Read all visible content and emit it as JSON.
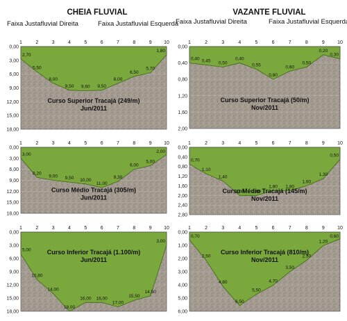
{
  "columns": [
    {
      "title": "CHEIA FLUVIAL",
      "left_bank": "Faixa Justafluvial Direita",
      "right_bank": "Faixa Justafluvial Esquerda"
    },
    {
      "title": "VAZANTE FLUVIAL",
      "left_bank": "Faixa Justafluvial Direita",
      "right_bank": "Faixa Justafluvial Esquerda"
    }
  ],
  "colors": {
    "water": "#7aa83c",
    "water_edge": "#3f6618",
    "sediment": "#a39a90",
    "grid": "#cfcfcf"
  },
  "chart_data": [
    {
      "type": "area",
      "column": 0,
      "row": 0,
      "x": [
        1,
        2,
        3,
        4,
        5,
        6,
        7,
        8,
        9,
        10
      ],
      "y": [
        2.7,
        5.5,
        8.0,
        9.5,
        9.6,
        9.5,
        8.0,
        6.5,
        5.7,
        1.8
      ],
      "point_labels": [
        "2,70",
        "5,50",
        "8,00",
        "9,50",
        "9,60",
        "9,50",
        "8,00",
        "6,50",
        "5,70",
        "1,80"
      ],
      "ylim": [
        0,
        18
      ],
      "y_ticks": [
        "0,00",
        "3,00",
        "6,00",
        "9,00",
        "12,00",
        "15,00",
        "18,00"
      ],
      "x_ticks": [
        "1",
        "2",
        "3",
        "4",
        "5",
        "6",
        "7",
        "8",
        "9",
        "10"
      ],
      "caption": [
        "Curso Superior Tracajá (249/m)",
        "Jun/2011"
      ]
    },
    {
      "type": "area",
      "column": 0,
      "row": 1,
      "x": [
        1,
        2,
        3,
        4,
        5,
        6,
        7,
        8,
        9,
        10
      ],
      "y": [
        3.0,
        8.2,
        9.0,
        9.5,
        10.0,
        11.0,
        9.3,
        6.0,
        5.0,
        2.0
      ],
      "point_labels": [
        "3,00",
        "8,20",
        "9,00",
        "9,50",
        "10,00",
        "11,00",
        "9,30",
        "6,00",
        "5,00",
        "2,00"
      ],
      "ylim": [
        0,
        18
      ],
      "y_ticks": [
        "0,00",
        "3,00",
        "6,00",
        "9,00",
        "12,00",
        "15,00",
        "18,00"
      ],
      "x_ticks": [
        "1",
        "2",
        "3",
        "4",
        "5",
        "6",
        "7",
        "8",
        "9",
        "10"
      ],
      "caption": [
        "Curso Médio Tracajá (305/m)",
        "Jun/2011"
      ]
    },
    {
      "type": "area",
      "column": 0,
      "row": 2,
      "x": [
        1,
        2,
        3,
        4,
        5,
        6,
        7,
        8,
        9,
        10
      ],
      "y": [
        5.0,
        10.8,
        14.0,
        18.0,
        16.0,
        16.0,
        17.0,
        15.5,
        14.5,
        3.0
      ],
      "point_labels": [
        "5,00",
        "10,80",
        "14,00",
        "18,00",
        "16,00",
        "16,00",
        "17,00",
        "15,50",
        "14,50",
        "3,00"
      ],
      "ylim": [
        0,
        18
      ],
      "y_ticks": [
        "0,00",
        "3,00",
        "6,00",
        "9,00",
        "12,00",
        "15,00",
        "18,00"
      ],
      "x_ticks": [
        "1",
        "2",
        "3",
        "4",
        "5",
        "6",
        "7",
        "8",
        "9",
        "10"
      ],
      "caption": [
        "Curso Inferior Tracajá (1.100/m)",
        "Jun/2011"
      ]
    },
    {
      "type": "area",
      "column": 1,
      "row": 0,
      "x": [
        1,
        2,
        3,
        4,
        5,
        6,
        7,
        8,
        9,
        10
      ],
      "y": [
        0.4,
        0.45,
        0.5,
        0.4,
        0.55,
        0.8,
        0.6,
        0.5,
        0.2,
        0.3
      ],
      "point_labels": [
        "0,40",
        "0,45",
        "0,50",
        "0,40",
        "0,55",
        "0,80",
        "0,60",
        "0,50",
        "0,20",
        "0,30"
      ],
      "ylim": [
        0,
        2
      ],
      "y_ticks": [
        "0,00",
        "0,40",
        "0,80",
        "1,20",
        "1,60",
        "2,00"
      ],
      "x_ticks": [
        "1",
        "2",
        "3",
        "4",
        "5",
        "6",
        "7",
        "8",
        "9",
        "10"
      ],
      "caption": [
        "Curso Superior Tracajá (50/m)",
        "Nov/2011"
      ]
    },
    {
      "type": "area",
      "column": 1,
      "row": 1,
      "x": [
        1,
        2,
        3,
        4,
        5,
        6,
        7,
        8,
        9,
        10
      ],
      "y": [
        0.7,
        1.1,
        1.4,
        2.0,
        2.0,
        1.8,
        1.8,
        1.6,
        1.3,
        0.5
      ],
      "point_labels": [
        "0,70",
        "1,10",
        "1,40",
        "2,00",
        "2,00",
        "1,80",
        "1,80",
        "1,60",
        "1,30",
        "0,50"
      ],
      "ylim": [
        0,
        2.8
      ],
      "y_ticks": [
        "0,00",
        "0,40",
        "0,80",
        "1,20",
        "1,60",
        "2,00",
        "2,40",
        "2,80"
      ],
      "x_ticks": [
        "1",
        "2",
        "3",
        "4",
        "5",
        "6",
        "7",
        "8",
        "9",
        "10"
      ],
      "caption": [
        "Curso Médio Tracajá (145/m)",
        "Nov/2011"
      ]
    },
    {
      "type": "area",
      "column": 1,
      "row": 2,
      "x": [
        1,
        2,
        3,
        4,
        5,
        6,
        7,
        8,
        9,
        10
      ],
      "y": [
        0.7,
        2.5,
        4.8,
        6.5,
        5.5,
        4.7,
        3.5,
        2.5,
        1.2,
        0.6
      ],
      "point_labels": [
        "0,70",
        "2,50",
        "4,80",
        "6,50",
        "5,50",
        "4,70",
        "3,50",
        "2,50",
        "1,20",
        "0,60"
      ],
      "ylim": [
        0,
        7
      ],
      "y_ticks": [
        "0,00",
        "1,00",
        "2,00",
        "3,00",
        "4,00",
        "5,00",
        "6,00"
      ],
      "x_ticks": [
        "1",
        "2",
        "3",
        "4",
        "5",
        "6",
        "7",
        "8",
        "9",
        "10"
      ],
      "caption": [
        "Curso Inferior Tracajá (810/m)",
        "Nov/2011"
      ]
    }
  ]
}
